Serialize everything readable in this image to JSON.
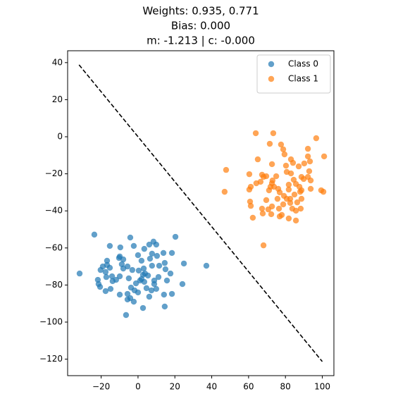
{
  "chart_data": {
    "type": "scatter",
    "title": [
      "Weights: 0.935, 0.771",
      "Bias: 0.000",
      "m: -1.213 | c: -0.000"
    ],
    "xlim": [
      -38.2,
      106.3
    ],
    "ylim": [
      -128.9,
      46.4
    ],
    "xticks": [
      {
        "value": -20,
        "label": "−20"
      },
      0,
      20,
      40,
      60,
      80,
      100
    ],
    "yticks": [
      {
        "value": -120,
        "label": "−120"
      },
      {
        "value": -100,
        "label": "−100"
      },
      {
        "value": -80,
        "label": "−80"
      },
      {
        "value": -60,
        "label": "−60"
      },
      {
        "value": -40,
        "label": "−40"
      },
      {
        "value": -20,
        "label": "−20"
      },
      0,
      20,
      40
    ],
    "legend": "upper right",
    "series": [
      {
        "name": "Class 0",
        "color": "#1f77b4",
        "x": [
          -23.7,
          -31.7,
          -15.3,
          -4.2,
          20.3,
          24.9,
          37.1,
          24.1,
          14.5,
          9.9,
          18.4,
          -2.3,
          3.4,
          8.4,
          10.3,
          6.5,
          1.9,
          7.6,
          -6.5,
          14.5,
          2.7,
          14.1,
          18.4,
          6.1,
          -4.2,
          -2.3,
          -5.7,
          -9.9,
          -20.6,
          -21.4,
          -17.6,
          -21.8,
          -14.9,
          -17.2,
          -16.8,
          -16.8,
          -20.3,
          -9.9,
          -10.3,
          -5.7,
          -8.0,
          -3.1,
          0.4,
          2.7,
          1.9,
          5.4,
          8.8,
          9.9,
          3.4,
          7.3,
          4.6,
          -3.8,
          -1.9,
          -5.7,
          -9.9,
          -11.9,
          -14.1,
          -17.6,
          -15.3,
          -19.1,
          6.1,
          7.6,
          3.1,
          0.0,
          14.9,
          11.1,
          17.6,
          1.1,
          -1.1,
          -5.0,
          0.0,
          -8.8,
          -9.6,
          11.5,
          8.8,
          15.7,
          -13.8,
          -8.0,
          3.8,
          13.8
        ],
        "y": [
          -52.8,
          -73.8,
          -58.9,
          -54.4,
          -54.0,
          -68.4,
          -69.6,
          -79.5,
          -68.1,
          -58.2,
          -62.7,
          -58.9,
          -60.5,
          -56.6,
          -64.3,
          -65.8,
          -66.9,
          -69.6,
          -96.2,
          -91.6,
          -92.4,
          -85.2,
          -84.8,
          -86.3,
          -87.1,
          -89.0,
          -87.8,
          -85.2,
          -81.0,
          -79.5,
          -83.3,
          -77.2,
          -82.1,
          -75.7,
          -69.2,
          -66.9,
          -71.9,
          -64.6,
          -65.4,
          -70.0,
          -71.1,
          -71.9,
          -72.2,
          -74.5,
          -76.8,
          -74.9,
          -79.5,
          -82.1,
          -78.3,
          -82.9,
          -81.7,
          -81.4,
          -82.9,
          -84.8,
          -75.3,
          -77.2,
          -75.3,
          -73.0,
          -70.7,
          -70.0,
          -58.2,
          -63.1,
          -71.1,
          -63.9,
          -71.5,
          -75.7,
          -73.8,
          -77.6,
          -79.1,
          -76.4,
          -84.0,
          -68.8,
          -59.7,
          -69.6,
          -77.6,
          -77.6,
          -77.9,
          -66.2,
          -73.8,
          -62.7
        ]
      },
      {
        "name": "Class 1",
        "color": "#ff7f0e",
        "x": [
          63.9,
          73.4,
          96.7,
          92.2,
          77.6,
          71.5,
          78.8,
          79.5,
          101.0,
          83.0,
          47.8,
          60.4,
          67.3,
          69.6,
          73.0,
          72.7,
          71.9,
          76.1,
          80.7,
          83.0,
          88.7,
          89.9,
          92.9,
          92.2,
          93.7,
          85.7,
          81.8,
          84.5,
          99.4,
          100.6,
          93.7,
          88.0,
          76.9,
          60.4,
          47.0,
          60.8,
          61.2,
          69.6,
          70.7,
          72.7,
          76.5,
          78.8,
          82.6,
          82.6,
          83.7,
          85.7,
          88.7,
          86.4,
          78.0,
          76.9,
          81.8,
          85.7,
          62.3,
          67.7,
          72.3,
          68.1,
          92.2,
          87.2,
          84.1,
          80.3,
          90.2,
          93.3,
          72.7,
          65.0,
          68.1,
          73.8,
          64.2,
          75.7,
          79.2,
          84.9,
          87.6,
          88.7,
          81.8,
          66.5,
          75.0,
          67.3,
          61.2,
          80.7,
          88.3,
          71.1
        ],
        "y": [
          1.9,
          1.9,
          -0.8,
          -6.5,
          -4.2,
          -3.8,
          -6.8,
          -9.5,
          -10.6,
          -12.2,
          -17.9,
          -20.2,
          -20.5,
          -21.3,
          -23.6,
          -25.1,
          -27.0,
          -28.1,
          -19.0,
          -19.8,
          -21.7,
          -22.8,
          -18.6,
          -21.7,
          -23.6,
          -25.5,
          -28.5,
          -23.2,
          -28.9,
          -29.7,
          -28.1,
          -29.7,
          -30.0,
          -28.5,
          -29.7,
          -35.0,
          -37.3,
          -34.2,
          -39.2,
          -37.6,
          -38.8,
          -36.5,
          -35.7,
          -33.5,
          -38.8,
          -39.9,
          -33.5,
          -35.4,
          -42.2,
          -43.0,
          -44.1,
          -45.2,
          -43.7,
          -41.4,
          -41.8,
          -58.6,
          -10.6,
          -16.0,
          -14.1,
          -15.6,
          -14.4,
          -13.3,
          -14.8,
          -12.2,
          -21.7,
          -27.0,
          -25.1,
          -33.5,
          -31.9,
          -31.2,
          -27.0,
          -28.9,
          -25.9,
          -24.3,
          -21.3,
          -38.8,
          -27.0,
          -33.5,
          -38.8,
          -28.9
        ]
      }
    ],
    "lines": [
      {
        "x": [
          -32,
          100
        ],
        "y": [
          38.8,
          -121.3
        ],
        "color": "#000000",
        "dashed": true
      }
    ]
  }
}
